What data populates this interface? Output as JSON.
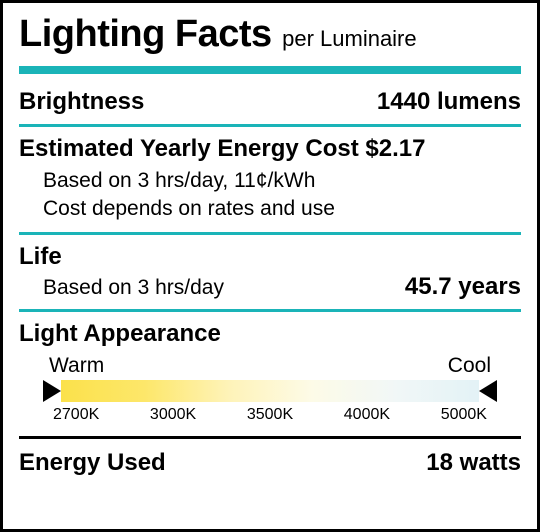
{
  "header": {
    "title_main": "Lighting Facts",
    "title_sub": "per Luminaire"
  },
  "colors": {
    "teal": "#1ab4b8",
    "black": "#000000",
    "white": "#ffffff",
    "spectrum_gradient": "linear-gradient(to right, #fbe14b 0%, #fde76a 20%, #fef3b8 40%, #fdfbe7 60%, #f1f7f7 80%, #e3f2f6 100%)"
  },
  "brightness": {
    "label": "Brightness",
    "value": "1440 lumens"
  },
  "cost": {
    "header": "Estimated Yearly Energy Cost $2.17",
    "note1": "Based on 3 hrs/day, 11¢/kWh",
    "note2": "Cost depends on rates and use"
  },
  "life": {
    "label": "Life",
    "note": "Based on 3 hrs/day",
    "value": "45.7 years"
  },
  "appearance": {
    "label": "Light Appearance",
    "warm": "Warm",
    "cool": "Cool",
    "ticks": [
      "2700K",
      "3000K",
      "3500K",
      "4000K",
      "5000K"
    ]
  },
  "energy": {
    "label": "Energy Used",
    "value": "18 watts"
  },
  "layout": {
    "title_main_fontsize": 38,
    "title_sub_fontsize": 22,
    "row_fontsize": 24,
    "note_fontsize": 21,
    "tick_fontsize": 16,
    "teal_bar_height": 8,
    "teal_line_height": 3,
    "spectrum_bar_height": 22
  }
}
